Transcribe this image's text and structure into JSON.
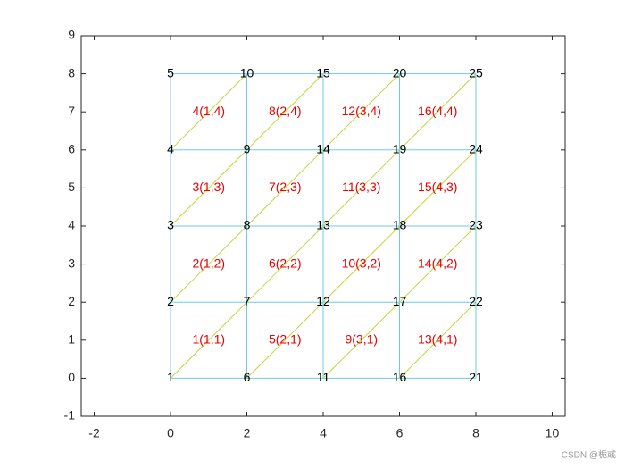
{
  "chart_data": {
    "type": "mesh",
    "xlim": [
      -2.34,
      10.34
    ],
    "ylim": [
      -1,
      9
    ],
    "xticks": [
      -2,
      0,
      2,
      4,
      6,
      8,
      10
    ],
    "yticks": [
      -1,
      0,
      1,
      2,
      3,
      4,
      5,
      6,
      7,
      8,
      9
    ],
    "edge_color": "#6ccbe6",
    "diagonal_color": "#c6d43a",
    "node_label_color": "#000000",
    "element_label_color": "#e60000",
    "nodes": {
      "x": [
        0,
        0,
        0,
        0,
        0,
        2,
        2,
        2,
        2,
        2,
        4,
        4,
        4,
        4,
        4,
        6,
        6,
        6,
        6,
        6,
        8,
        8,
        8,
        8,
        8
      ],
      "y": [
        0,
        2,
        4,
        6,
        8,
        0,
        2,
        4,
        6,
        8,
        0,
        2,
        4,
        6,
        8,
        0,
        2,
        4,
        6,
        8,
        0,
        2,
        4,
        6,
        8
      ],
      "labels": [
        1,
        2,
        3,
        4,
        5,
        6,
        7,
        8,
        9,
        10,
        11,
        12,
        13,
        14,
        15,
        16,
        17,
        18,
        19,
        20,
        21,
        22,
        23,
        24,
        25
      ]
    },
    "elements": {
      "x": [
        1,
        1,
        1,
        1,
        3,
        3,
        3,
        3,
        5,
        5,
        5,
        5,
        7,
        7,
        7,
        7
      ],
      "y": [
        1,
        3,
        5,
        7,
        1,
        3,
        5,
        7,
        1,
        3,
        5,
        7,
        1,
        3,
        5,
        7
      ],
      "labels": [
        "1(1,1)",
        "2(1,2)",
        "3(1,3)",
        "4(1,4)",
        "5(2,1)",
        "6(2,2)",
        "7(2,3)",
        "8(2,4)",
        "9(3,1)",
        "10(3,2)",
        "11(3,3)",
        "12(3,4)",
        "13(4,1)",
        "14(4,2)",
        "15(4,3)",
        "16(4,4)"
      ]
    },
    "watermark": "CSDN @栀彧"
  }
}
